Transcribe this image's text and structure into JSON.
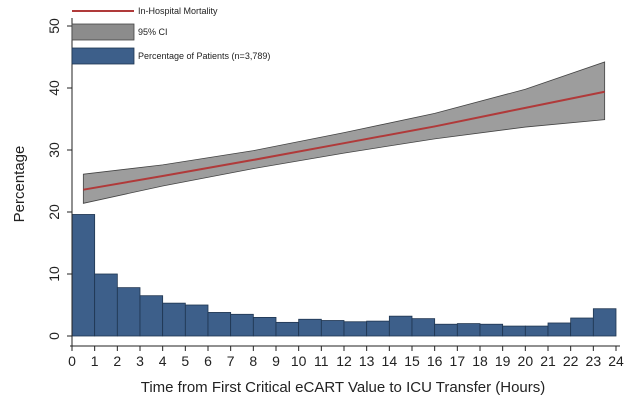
{
  "chart_data": {
    "type": "bar",
    "title": "",
    "xlabel": "Time from First Critical eCART Value to ICU Transfer (Hours)",
    "ylabel": "Percentage",
    "xlim": [
      0,
      24
    ],
    "ylim": [
      0,
      50
    ],
    "x_ticks": [
      "0",
      "1",
      "2",
      "3",
      "4",
      "5",
      "6",
      "7",
      "8",
      "9",
      "10",
      "11",
      "12",
      "13",
      "14",
      "15",
      "16",
      "17",
      "18",
      "19",
      "20",
      "21",
      "22",
      "23",
      "24"
    ],
    "y_ticks": [
      "0",
      "10",
      "20",
      "30",
      "40",
      "50"
    ],
    "grid": false,
    "legend_position": "top-left",
    "legend": {
      "line": "In-Hospital Mortality",
      "ci": "95% CI",
      "bars": "Percentage of Patients (n=3,789)"
    },
    "bars": {
      "name": "Percentage of Patients (n=3,789)",
      "color": "#3d5f8a",
      "bin_width": 1,
      "bin_starts": [
        0,
        1,
        2,
        3,
        4,
        5,
        6,
        7,
        8,
        9,
        10,
        11,
        12,
        13,
        14,
        15,
        16,
        17,
        18,
        19,
        20,
        21,
        22,
        23
      ],
      "values": [
        19.6,
        10.0,
        7.8,
        6.5,
        5.3,
        5.0,
        3.8,
        3.5,
        3.0,
        2.2,
        2.7,
        2.5,
        2.3,
        2.4,
        3.2,
        2.8,
        1.9,
        2.0,
        1.9,
        1.6,
        1.6,
        2.1,
        2.9,
        4.4
      ]
    },
    "line": {
      "name": "In-Hospital Mortality",
      "color": "#b03a3a",
      "x": [
        0.5,
        4,
        8,
        12,
        16,
        20,
        23.5
      ],
      "y": [
        23.6,
        25.8,
        28.4,
        31.1,
        33.8,
        36.8,
        39.4
      ]
    },
    "ci": {
      "name": "95% CI",
      "color": "#8c8c8c",
      "x": [
        0.5,
        4,
        8,
        12,
        16,
        20,
        23.5
      ],
      "lower": [
        21.4,
        24.2,
        27.0,
        29.5,
        31.8,
        33.7,
        34.9
      ],
      "upper": [
        26.1,
        27.6,
        29.9,
        32.8,
        35.9,
        39.8,
        44.2
      ]
    }
  }
}
